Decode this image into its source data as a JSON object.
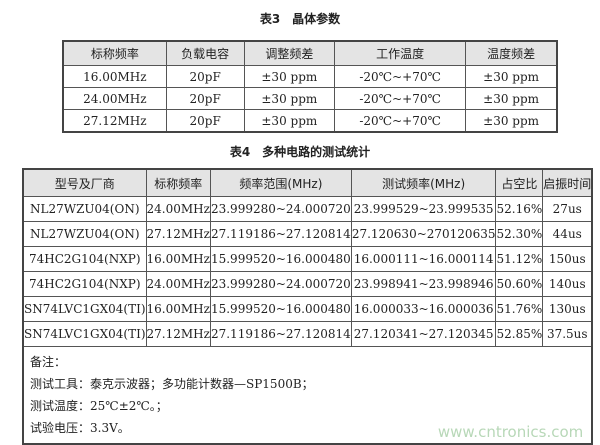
{
  "table3": {
    "caption": "表3　晶体参数",
    "headers": [
      "标称频率",
      "负载电容",
      "调整频差",
      "工作温度",
      "温度频差"
    ],
    "rows": [
      [
        "16.00MHz",
        "20pF",
        "±30 ppm",
        "-20℃~+70℃",
        "±30 ppm"
      ],
      [
        "24.00MHz",
        "20pF",
        "±30 ppm",
        "-20℃~+70℃",
        "±30 ppm"
      ],
      [
        "27.12MHz",
        "20pF",
        "±30 ppm",
        "-20℃~+70℃",
        "±30 ppm"
      ]
    ]
  },
  "table4": {
    "caption": "表4　多种电路的测试统计",
    "headers": [
      "型号及厂商",
      "标称频率",
      "频率范围(MHz)",
      "测试频率(MHz)",
      "占空比",
      "启振时间"
    ],
    "rows": [
      [
        "NL27WZU04(ON)",
        "24.00MHz",
        "23.999280~24.000720",
        "23.999529~23.999535",
        "52.16%",
        "27us"
      ],
      [
        "NL27WZU04(ON)",
        "27.12MHz",
        "27.119186~27.120814",
        "27.120630~270120635",
        "52.30%",
        "44us"
      ],
      [
        "74HC2G104(NXP)",
        "16.00MHz",
        "15.999520~16.000480",
        "16.000111~16.000114",
        "51.12%",
        "150us"
      ],
      [
        "74HC2G104(NXP)",
        "24.00MHz",
        "23.999280~24.000720",
        "23.998941~23.998946",
        "50.60%",
        "140us"
      ],
      [
        "SN74LVC1GX04(TI)",
        "16.00MHz",
        "15.999520~16.000480",
        "16.000033~16.000036",
        "51.76%",
        "130us"
      ],
      [
        "SN74LVC1GX04(TI)",
        "27.12MHz",
        "27.119186~27.120814",
        "27.120341~27.120345",
        "52.85%",
        "37.5us"
      ]
    ],
    "notes": [
      "备注：",
      "测试工具：泰克示波器；多功能计数器—SP1500B；",
      "测试温度：25℃±2℃。；",
      "试验电压：3.3V。"
    ]
  },
  "watermark": "www.cntronics.com"
}
